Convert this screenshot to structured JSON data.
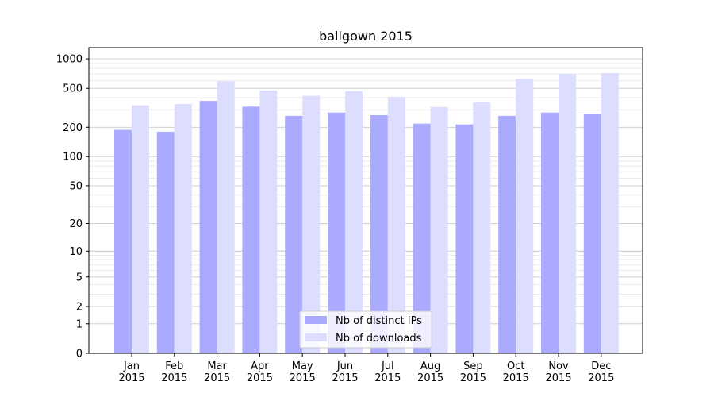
{
  "chart_data": {
    "type": "bar",
    "title": "ballgown 2015",
    "xlabel": "",
    "ylabel": "",
    "y_scale": "log1p",
    "ylim": [
      0,
      1300
    ],
    "yticks": [
      0,
      1,
      2,
      5,
      10,
      20,
      50,
      100,
      200,
      500,
      1000
    ],
    "grid": true,
    "legend_position": "bottom-center",
    "categories": [
      "Jan\n2015",
      "Feb\n2015",
      "Mar\n2015",
      "Apr\n2015",
      "May\n2015",
      "Jun\n2015",
      "Jul\n2015",
      "Aug\n2015",
      "Sep\n2015",
      "Oct\n2015",
      "Nov\n2015",
      "Dec\n2015"
    ],
    "series": [
      {
        "name": "Nb of distinct IPs",
        "color": "#aaaaff",
        "values": [
          188,
          180,
          372,
          325,
          262,
          283,
          266,
          218,
          214,
          262,
          283,
          272
        ]
      },
      {
        "name": "Nb of downloads",
        "color": "#ddddff",
        "values": [
          335,
          345,
          590,
          475,
          420,
          465,
          410,
          322,
          362,
          625,
          705,
          715
        ]
      }
    ]
  }
}
